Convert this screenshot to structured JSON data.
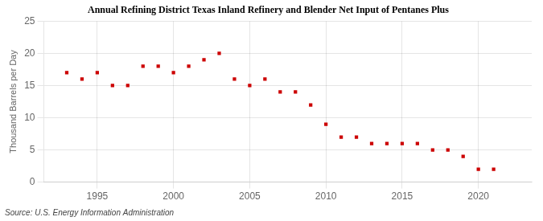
{
  "chart_data": {
    "type": "scatter",
    "title": "Annual Refining District Texas Inland Refinery and Blender Net Input of Pentanes Plus",
    "ylabel": "Thousand Barrels per Day",
    "annotation": "Source: U.S. Energy Information Administration",
    "x": [
      1993,
      1994,
      1995,
      1996,
      1997,
      1998,
      1999,
      2000,
      2001,
      2002,
      2003,
      2004,
      2005,
      2006,
      2007,
      2008,
      2009,
      2010,
      2011,
      2012,
      2013,
      2014,
      2015,
      2016,
      2017,
      2018,
      2019,
      2020,
      2021
    ],
    "values": [
      17.0,
      16.0,
      17.0,
      15.0,
      15.0,
      18.0,
      18.0,
      17.0,
      18.0,
      19.0,
      20.0,
      16.0,
      15.0,
      16.0,
      14.0,
      14.0,
      12.0,
      9.0,
      7.0,
      7.0,
      6.0,
      6.0,
      6.0,
      6.0,
      5.0,
      5.0,
      4.0,
      2.0,
      2.0
    ],
    "color": "#cc0000",
    "marker": "square",
    "xlim": [
      1991.5,
      2023.5
    ],
    "ylim": [
      0,
      25
    ],
    "xticks": [
      1995,
      2000,
      2005,
      2010,
      2015,
      2020
    ],
    "yticks": [
      0,
      5,
      10,
      15,
      20,
      25
    ],
    "grid": true
  }
}
